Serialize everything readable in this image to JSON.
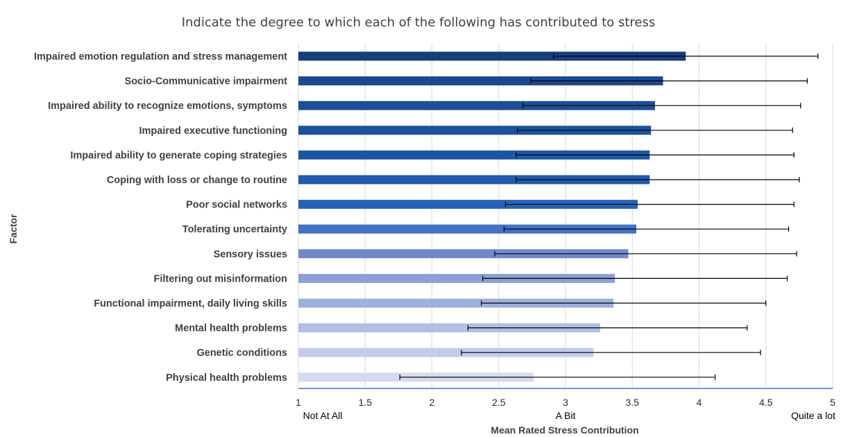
{
  "chart_data": {
    "type": "bar",
    "orientation": "horizontal",
    "title": "Indicate the degree to which each of the following has contributed to stress",
    "xlabel": "Mean Rated Stress Contribution",
    "ylabel": "Factor",
    "xlim": [
      1,
      5
    ],
    "xticks": [
      "1",
      "1.5",
      "2",
      "2.5",
      "3",
      "3.5",
      "4",
      "4.5",
      "5"
    ],
    "tick_anchor_labels": [
      {
        "value": 1,
        "label": "Not At All"
      },
      {
        "value": 3,
        "label": "A Bit"
      },
      {
        "value": 5,
        "label": "Quite a lot"
      }
    ],
    "grid": true,
    "error_bars": true,
    "categories": [
      "Impaired emotion regulation and stress management",
      "Socio-Communicative impairment",
      "Impaired ability to recognize emotions, symptoms",
      "Impaired executive functioning",
      "Impaired ability to generate coping strategies",
      "Coping with loss or change to routine",
      "Poor social networks",
      "Tolerating uncertainty",
      "Sensory issues",
      "Filtering out misinformation",
      "Functional impairment, daily living skills",
      "Mental health problems",
      "Genetic conditions",
      "Physical health problems"
    ],
    "values": [
      3.9,
      3.73,
      3.67,
      3.64,
      3.63,
      3.63,
      3.54,
      3.53,
      3.47,
      3.37,
      3.36,
      3.26,
      3.21,
      2.76
    ],
    "error_low": [
      2.91,
      2.74,
      2.68,
      2.64,
      2.63,
      2.63,
      2.55,
      2.54,
      2.47,
      2.38,
      2.37,
      2.27,
      2.22,
      1.76
    ],
    "error_high": [
      4.89,
      4.81,
      4.76,
      4.7,
      4.71,
      4.75,
      4.71,
      4.67,
      4.73,
      4.66,
      4.5,
      4.36,
      4.46,
      4.12
    ],
    "bar_colors": [
      "#163f7c",
      "#1a4a8d",
      "#1c4f96",
      "#1d529c",
      "#1e56a4",
      "#1f5aab",
      "#2663b8",
      "#4472c4",
      "#7189cc",
      "#8ba0d5",
      "#9eb0dc",
      "#b0bfe3",
      "#c2ccea",
      "#d3dbf0"
    ]
  }
}
